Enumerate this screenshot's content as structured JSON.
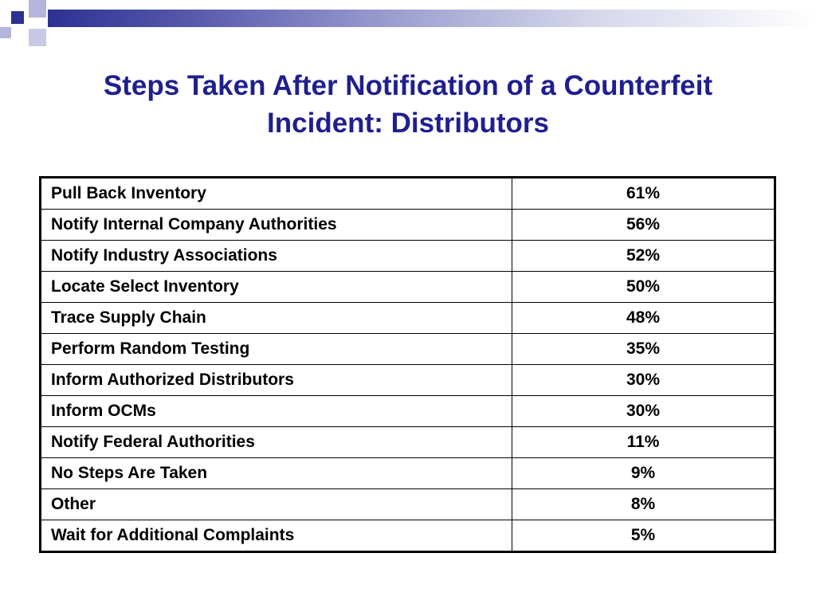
{
  "slide": {
    "title_line1": "Steps Taken After Notification of a Counterfeit",
    "title_line2": "Incident: Distributors",
    "accent_color": "#1f1f8f",
    "deco_color": "#2e3192"
  },
  "table": {
    "rows": [
      {
        "label": "Pull Back Inventory",
        "value": "61%"
      },
      {
        "label": "Notify Internal Company Authorities",
        "value": "56%"
      },
      {
        "label": "Notify Industry Associations",
        "value": "52%"
      },
      {
        "label": "Locate Select Inventory",
        "value": "50%"
      },
      {
        "label": "Trace Supply Chain",
        "value": "48%"
      },
      {
        "label": "Perform Random Testing",
        "value": "35%"
      },
      {
        "label": "Inform Authorized Distributors",
        "value": "30%"
      },
      {
        "label": "Inform OCMs",
        "value": "30%"
      },
      {
        "label": "Notify Federal Authorities",
        "value": "11%"
      },
      {
        "label": "No Steps Are Taken",
        "value": "9%"
      },
      {
        "label": "Other",
        "value": "8%"
      },
      {
        "label": "Wait for Additional Complaints",
        "value": "5%"
      }
    ]
  }
}
